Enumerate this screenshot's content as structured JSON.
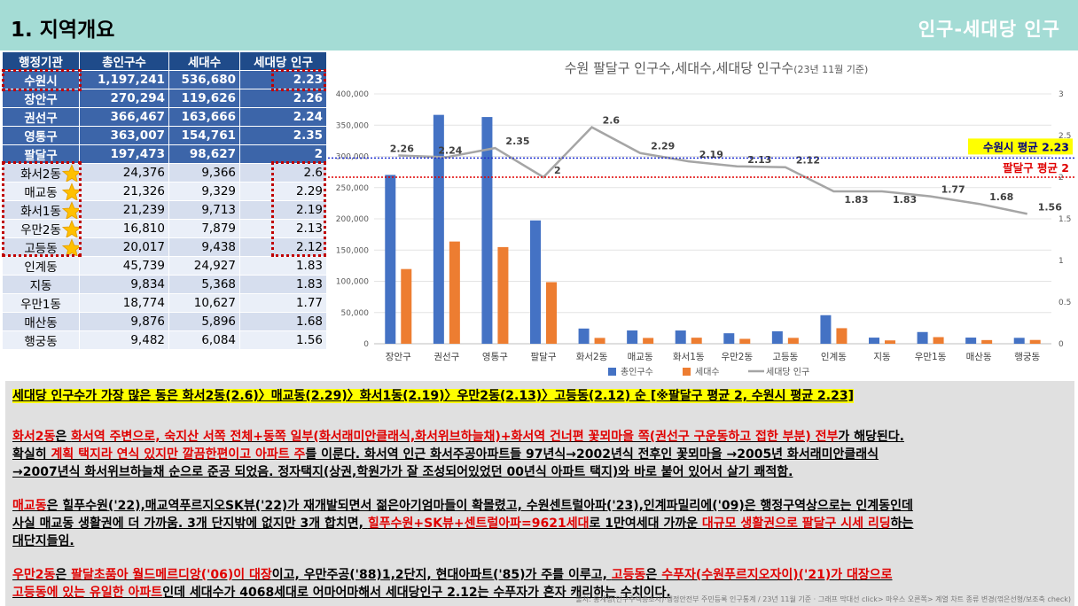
{
  "header": {
    "title": "1. 지역개요",
    "subtitle": "인구-세대당 인구"
  },
  "table": {
    "headers": [
      "행정기관",
      "총인구수",
      "세대수",
      "세대당 인구"
    ],
    "gu_rows": [
      {
        "name": "수원시",
        "pop": "1,197,241",
        "households": "536,680",
        "ratio": "2.23"
      },
      {
        "name": "장안구",
        "pop": "270,294",
        "households": "119,626",
        "ratio": "2.26"
      },
      {
        "name": "권선구",
        "pop": "366,467",
        "households": "163,666",
        "ratio": "2.24"
      },
      {
        "name": "영통구",
        "pop": "363,007",
        "households": "154,761",
        "ratio": "2.35"
      },
      {
        "name": "팔달구",
        "pop": "197,473",
        "households": "98,627",
        "ratio": "2"
      }
    ],
    "dong_rows": [
      {
        "name": "화서2동",
        "pop": "24,376",
        "households": "9,366",
        "ratio": "2.6",
        "star": true
      },
      {
        "name": "매교동",
        "pop": "21,326",
        "households": "9,329",
        "ratio": "2.29",
        "star": true
      },
      {
        "name": "화서1동",
        "pop": "21,239",
        "households": "9,713",
        "ratio": "2.19",
        "star": true
      },
      {
        "name": "우만2동",
        "pop": "16,810",
        "households": "7,879",
        "ratio": "2.13",
        "star": true
      },
      {
        "name": "고등동",
        "pop": "20,017",
        "households": "9,438",
        "ratio": "2.12",
        "star": true
      },
      {
        "name": "인계동",
        "pop": "45,739",
        "households": "24,927",
        "ratio": "1.83",
        "star": false
      },
      {
        "name": "지동",
        "pop": "9,834",
        "households": "5,368",
        "ratio": "1.83",
        "star": false
      },
      {
        "name": "우만1동",
        "pop": "18,774",
        "households": "10,627",
        "ratio": "1.77",
        "star": false
      },
      {
        "name": "매산동",
        "pop": "9,876",
        "households": "5,896",
        "ratio": "1.68",
        "star": false
      },
      {
        "name": "행궁동",
        "pop": "9,482",
        "households": "6,084",
        "ratio": "1.56",
        "star": false
      }
    ]
  },
  "chart_data": {
    "type": "bar",
    "title": "수원 팔달구 인구수,세대수,세대당 인구수",
    "title_note": "(23년 11월 기준)",
    "categories": [
      "장안구",
      "권선구",
      "영통구",
      "팔달구",
      "화서2동",
      "매교동",
      "화서1동",
      "우만2동",
      "고등동",
      "인계동",
      "지동",
      "우만1동",
      "매산동",
      "행궁동"
    ],
    "series": [
      {
        "name": "총인구수",
        "type": "bar",
        "axis": "left",
        "color": "#4472c4",
        "values": [
          270294,
          366467,
          363007,
          197473,
          24376,
          21326,
          21239,
          16810,
          20017,
          45739,
          9834,
          18774,
          9876,
          9482
        ]
      },
      {
        "name": "세대수",
        "type": "bar",
        "axis": "left",
        "color": "#ed7d31",
        "values": [
          119626,
          163666,
          154761,
          98627,
          9366,
          9329,
          9713,
          7879,
          9438,
          24927,
          5368,
          10627,
          5896,
          6084
        ]
      },
      {
        "name": "세대당 인구",
        "type": "line",
        "axis": "right",
        "color": "#a5a5a5",
        "values": [
          2.26,
          2.24,
          2.35,
          2,
          2.6,
          2.29,
          2.19,
          2.13,
          2.12,
          1.83,
          1.83,
          1.77,
          1.68,
          1.56
        ],
        "labels": [
          "2.26",
          "2.24",
          "2.35",
          "2",
          "2.6",
          "2.29",
          "2.19",
          "2.13",
          "2.12",
          "1.83",
          "1.83",
          "1.77",
          "1.68",
          "1.56"
        ]
      }
    ],
    "ylim_left": [
      0,
      400000
    ],
    "yticks_left": [
      "0",
      "50,000",
      "100,000",
      "150,000",
      "200,000",
      "250,000",
      "300,000",
      "350,000",
      "400,000"
    ],
    "ylim_right": [
      0,
      3
    ],
    "yticks_right": [
      "0",
      "0.5",
      "1",
      "1.5",
      "2",
      "2.5",
      "3"
    ],
    "reference_lines": [
      {
        "label": "수원시 평균 2.23",
        "value": 2.23,
        "color": "#1f2fd0"
      },
      {
        "label": "팔달구 평균 2",
        "value": 2,
        "color": "#e00000"
      }
    ],
    "legend_position": "bottom"
  },
  "notes": {
    "summary": "세대당 인구수가 가장 많은 동은 화서2동(2.6)〉매교동(2.29)〉화서1동(2.19)〉우만2동(2.13)〉고등동(2.12) 순 [※팔달구 평균 2, 수원시 평균 2.23]",
    "p1": {
      "a": "화서2동",
      "b": "은 ",
      "c": "화서역 주변으로, 숙지산 서쪽 전체+동쪽 일부(화서래미안클래식,화서위브하늘채)+화서역 건너편 꽃뫼마을 쪽(권선구 구운동하고 접한 부분) 전부",
      "d": "가 해당된다.",
      "line2a": "확실히 ",
      "line2b": "계획 택지라 연식 있지만 깔끔한편이고 아파트 주",
      "line2c": "를 이룬다. 화서역 인근 화서주공아파트들 97년식→2002년식 전후인 꽃뫼마을 →2005년 화서래미안클래식",
      "line3": "→2007년식 화서위브하늘채 순으로 준공 되었음. 정자택지(상권,학원가가 잘 조성되어있었던 00년식 아파트 택지)와 바로 붙어 있어서 살기 쾌적함."
    },
    "p2": {
      "a": "매교동",
      "b": "은 힐푸수원('22),매교역푸르지오SK뷰('22)가 재개발되면서 젊은아기엄마들이 확몰렸고, 수원센트럴아파('23),인계파밀리에('09)은 행정구역상으로는 인계동인데",
      "line2a": "사실 매교동 생활권에 더 가까움. 3개 단지밖에 없지만 3개 합치면, ",
      "line2b": "힐푸수원+SK뷰+센트럴아파=9621세대",
      "line2c": "로 1만여세대 가까운 ",
      "line2d": "대규모 생활권으로 팔달구 시세 리딩",
      "line2e": "하는",
      "line3": "대단지들임."
    },
    "p3": {
      "a": "우만2동",
      "b": "은 ",
      "c": "팔달초품아 월드메르디앙('06)이 대장",
      "d": "이고, 우만주공('88)1,2단지, 현대아파트('85)가 주를 이루고, ",
      "e": "고등동",
      "f": "은 ",
      "g": "수푸자(수원푸르지오자이)('21)가 대장으로",
      "line2a": "고등동에 있는 유일한 아파트",
      "line2b": "인데 세대수가 4068세대로 어마어마해서 세대당인구 2.12는 수푸자가 혼자 캐리하는 수치이다."
    },
    "footer": "출처: 통계청(인구주택총조사)·행정안전부 주민등록 인구통계 / 23년 11월 기준 · 그래프 막대선 click> 마우스 오른쪽> 계열 차트 종류 변경(꺾은선형/보조축 check)"
  }
}
